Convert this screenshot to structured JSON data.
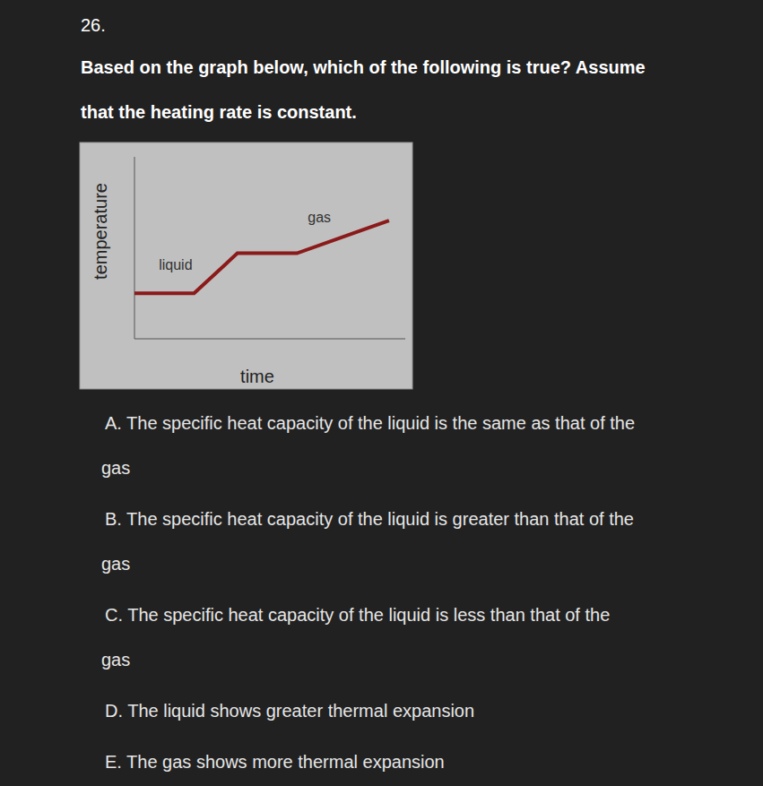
{
  "question": {
    "number": "26.",
    "text": [
      "Based on the graph below, which of the following is true? Assume",
      "that the heating rate is constant."
    ]
  },
  "chart_data": {
    "type": "line",
    "x_label": "time",
    "y_label": "temperature",
    "x": [
      0,
      22,
      38,
      60,
      94
    ],
    "values": [
      25,
      25,
      47,
      47,
      65
    ],
    "color": "#8b1a1a",
    "xlim": [
      0,
      100
    ],
    "ylim": [
      0,
      100
    ],
    "xticks": [],
    "yticks": [],
    "tick_labels": false,
    "grid": false,
    "annotations": [
      {
        "text": "liquid",
        "x": 9,
        "y": 38
      },
      {
        "text": "gas",
        "x": 64,
        "y": 64
      }
    ]
  },
  "options": [
    {
      "lines": [
        "A. The specific heat capacity of the liquid is the same as that of the",
        "gas"
      ]
    },
    {
      "lines": [
        "B. The specific heat capacity of the liquid is greater than that of the",
        "gas"
      ]
    },
    {
      "lines": [
        "C. The specific heat capacity of the liquid is less than that of the",
        "gas"
      ]
    },
    {
      "lines": [
        "D. The liquid shows greater thermal expansion"
      ]
    },
    {
      "lines": [
        "E. The gas shows more thermal expansion"
      ]
    }
  ]
}
